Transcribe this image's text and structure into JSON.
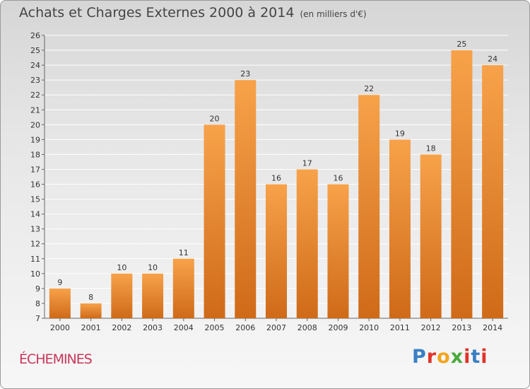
{
  "header": {
    "title": "Achats et Charges Externes 2000 à 2014",
    "subtitle": "(en milliers d'€)"
  },
  "footer": {
    "commune": "ÉCHEMINES",
    "logo_text": "Proxiti",
    "logo_colors": [
      "#3a7fc4",
      "#e0342a",
      "#f2a51c",
      "#4aaa3c",
      "#e0342a",
      "#3a7fc4",
      "#e0342a"
    ]
  },
  "colors": {
    "bar_light": "#f7a24a",
    "bar_dark": "#cf6a18",
    "axis_text": "#333333",
    "grid": "#ffffff"
  },
  "chart_data": {
    "type": "bar",
    "categories": [
      "2000",
      "2001",
      "2002",
      "2003",
      "2004",
      "2005",
      "2006",
      "2007",
      "2008",
      "2009",
      "2010",
      "2011",
      "2012",
      "2013",
      "2014"
    ],
    "values": [
      9,
      8,
      10,
      10,
      11,
      20,
      23,
      16,
      17,
      16,
      22,
      19,
      18,
      25,
      24
    ],
    "title": "Achats et Charges Externes 2000 à 2014",
    "subtitle": "(en milliers d'€)",
    "xlabel": "",
    "ylabel": "",
    "ylim": [
      7,
      26
    ],
    "yticks": [
      7,
      8,
      9,
      10,
      11,
      12,
      13,
      14,
      15,
      16,
      17,
      18,
      19,
      20,
      21,
      22,
      23,
      24,
      25,
      26
    ],
    "grid": true,
    "data_labels": true
  }
}
